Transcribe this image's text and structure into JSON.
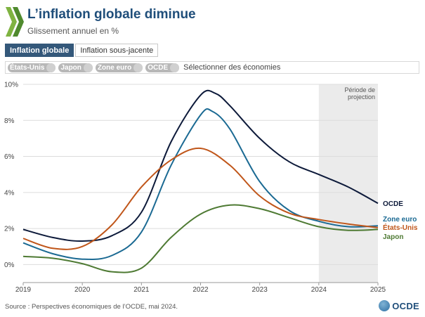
{
  "header": {
    "title": "L’inflation globale diminue",
    "subtitle": "Glissement annuel en %"
  },
  "tabs": [
    {
      "label": "Inflation globale",
      "active": true
    },
    {
      "label": "Inflation sous-jacente",
      "active": false
    }
  ],
  "filters": {
    "chips": [
      "États-Unis",
      "Japon",
      "Zone euro",
      "OCDE"
    ],
    "select_label": "Sélectionner des économies"
  },
  "footer": {
    "source": "Source : Perspectives économiques de l’OCDE, mai 2024.",
    "logo_text": "OCDE"
  },
  "chart_data": {
    "type": "line",
    "x_ticks": [
      "2019",
      "2020",
      "2021",
      "2022",
      "2023",
      "2024",
      "2025"
    ],
    "y_ticks": [
      "0%",
      "2%",
      "4%",
      "6%",
      "8%",
      "10%"
    ],
    "ylim": [
      -1,
      10
    ],
    "xlim": [
      2019,
      2025
    ],
    "grid": true,
    "projection": {
      "start": 2024,
      "end": 2025,
      "label_line1": "Période de",
      "label_line2": "projection",
      "color": "#ebebeb"
    },
    "series": [
      {
        "name": "OCDE",
        "color": "#0d1a3a",
        "points": [
          [
            2019,
            1.95
          ],
          [
            2019.5,
            1.5
          ],
          [
            2020,
            1.3
          ],
          [
            2020.5,
            1.6
          ],
          [
            2021,
            2.9
          ],
          [
            2021.5,
            6.8
          ],
          [
            2022,
            9.4
          ],
          [
            2022.25,
            9.5
          ],
          [
            2022.5,
            8.8
          ],
          [
            2023,
            7.0
          ],
          [
            2023.5,
            5.7
          ],
          [
            2024,
            5.0
          ],
          [
            2024.5,
            4.3
          ],
          [
            2025,
            3.4
          ]
        ]
      },
      {
        "name": "Zone euro",
        "color": "#1b6a93",
        "points": [
          [
            2019,
            1.2
          ],
          [
            2019.5,
            0.6
          ],
          [
            2020,
            0.3
          ],
          [
            2020.5,
            0.5
          ],
          [
            2021,
            1.8
          ],
          [
            2021.5,
            5.5
          ],
          [
            2022,
            8.3
          ],
          [
            2022.2,
            8.5
          ],
          [
            2022.5,
            7.5
          ],
          [
            2023,
            4.6
          ],
          [
            2023.5,
            3.0
          ],
          [
            2024,
            2.4
          ],
          [
            2024.5,
            2.1
          ],
          [
            2025,
            2.15
          ]
        ]
      },
      {
        "name": "États-Unis",
        "color": "#c0561a",
        "points": [
          [
            2019,
            1.45
          ],
          [
            2019.5,
            0.9
          ],
          [
            2020,
            1.0
          ],
          [
            2020.5,
            2.2
          ],
          [
            2021,
            4.3
          ],
          [
            2021.5,
            5.8
          ],
          [
            2022,
            6.45
          ],
          [
            2022.5,
            5.5
          ],
          [
            2023,
            3.8
          ],
          [
            2023.5,
            2.85
          ],
          [
            2024,
            2.5
          ],
          [
            2024.5,
            2.25
          ],
          [
            2025,
            2.05
          ]
        ]
      },
      {
        "name": "Japon",
        "color": "#4e7a33",
        "points": [
          [
            2019,
            0.45
          ],
          [
            2019.5,
            0.35
          ],
          [
            2020,
            0.05
          ],
          [
            2020.5,
            -0.4
          ],
          [
            2021,
            -0.2
          ],
          [
            2021.5,
            1.5
          ],
          [
            2022,
            2.8
          ],
          [
            2022.5,
            3.3
          ],
          [
            2023,
            3.1
          ],
          [
            2023.5,
            2.6
          ],
          [
            2024,
            2.1
          ],
          [
            2024.5,
            1.9
          ],
          [
            2025,
            1.95
          ]
        ]
      }
    ]
  }
}
